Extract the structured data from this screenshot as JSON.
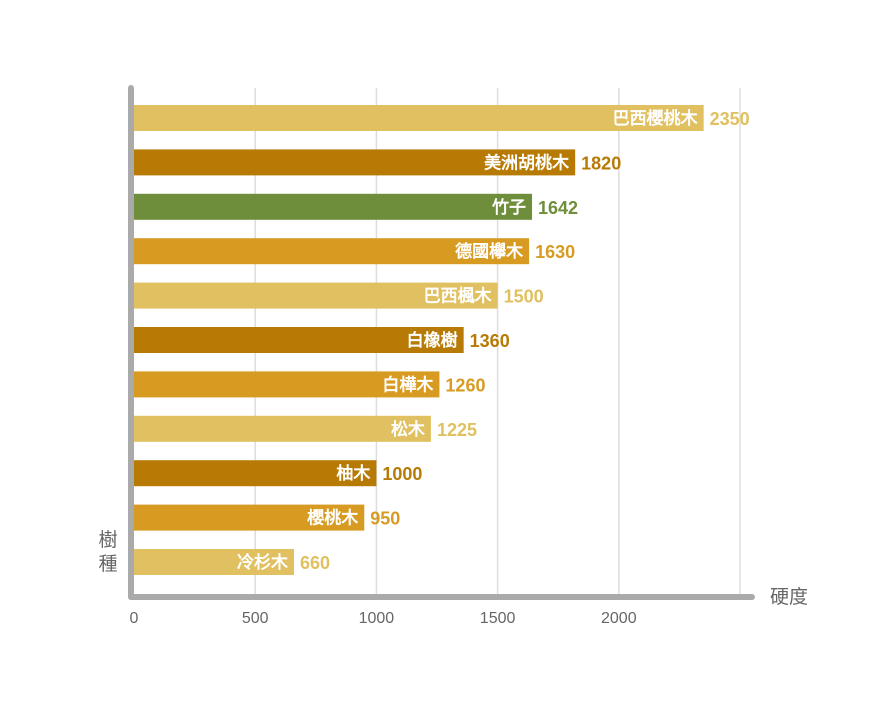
{
  "chart_data": {
    "type": "bar",
    "orientation": "horizontal",
    "title": "",
    "xlabel": "硬度",
    "ylabel": "樹種",
    "xlim": [
      0,
      2500
    ],
    "xticks": [
      0,
      500,
      1000,
      1500,
      2000
    ],
    "grid": true,
    "categories": [
      "巴西櫻桃木",
      "美洲胡桃木",
      "竹子",
      "德國欅木",
      "巴西楓木",
      "白橡樹",
      "白樺木",
      "松木",
      "柚木",
      "櫻桃木",
      "冷杉木"
    ],
    "values": [
      2350,
      1820,
      1642,
      1630,
      1500,
      1360,
      1260,
      1225,
      1000,
      950,
      660
    ],
    "colors": [
      "#E0C060",
      "#B77B05",
      "#6F8E3B",
      "#D89B22",
      "#E0C060",
      "#B77B05",
      "#D89B22",
      "#E0C060",
      "#B77B05",
      "#D89B22",
      "#E0C060"
    ]
  }
}
